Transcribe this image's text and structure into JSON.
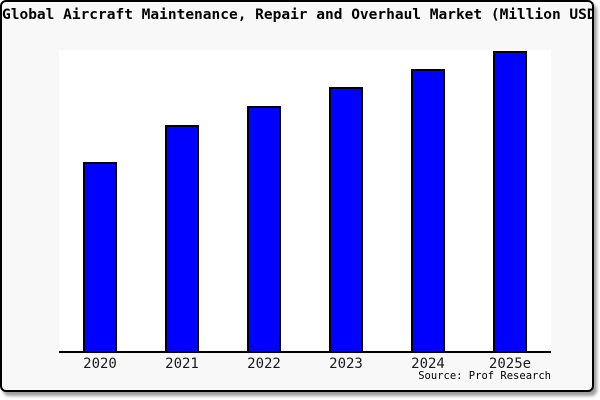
{
  "title": "Global Aircraft Maintenance, Repair and Overhaul Market (Million USD)",
  "source": "Source: Prof Research",
  "colors": {
    "bar": "#0000ff",
    "bar_border": "#000000",
    "card_background": "#f8f8f8",
    "plot_background": "#ffffff",
    "axis": "#000000",
    "text": "#000000"
  },
  "chart_data": {
    "type": "bar",
    "title": "Global Aircraft Maintenance, Repair and Overhaul Market (Million USD)",
    "categories": [
      "2020",
      "2021",
      "2022",
      "2023",
      "2024",
      "2025e"
    ],
    "values": [
      62.8,
      75.1,
      81.4,
      87.7,
      93.7,
      99.7
    ],
    "xlabel": "",
    "ylabel": "",
    "ylim": [
      0,
      100
    ],
    "y_axis_labels_visible": false,
    "gridlines": false,
    "legend": "none",
    "values_note": "no y-axis scale shown; values are bar heights as percent of plot height"
  }
}
